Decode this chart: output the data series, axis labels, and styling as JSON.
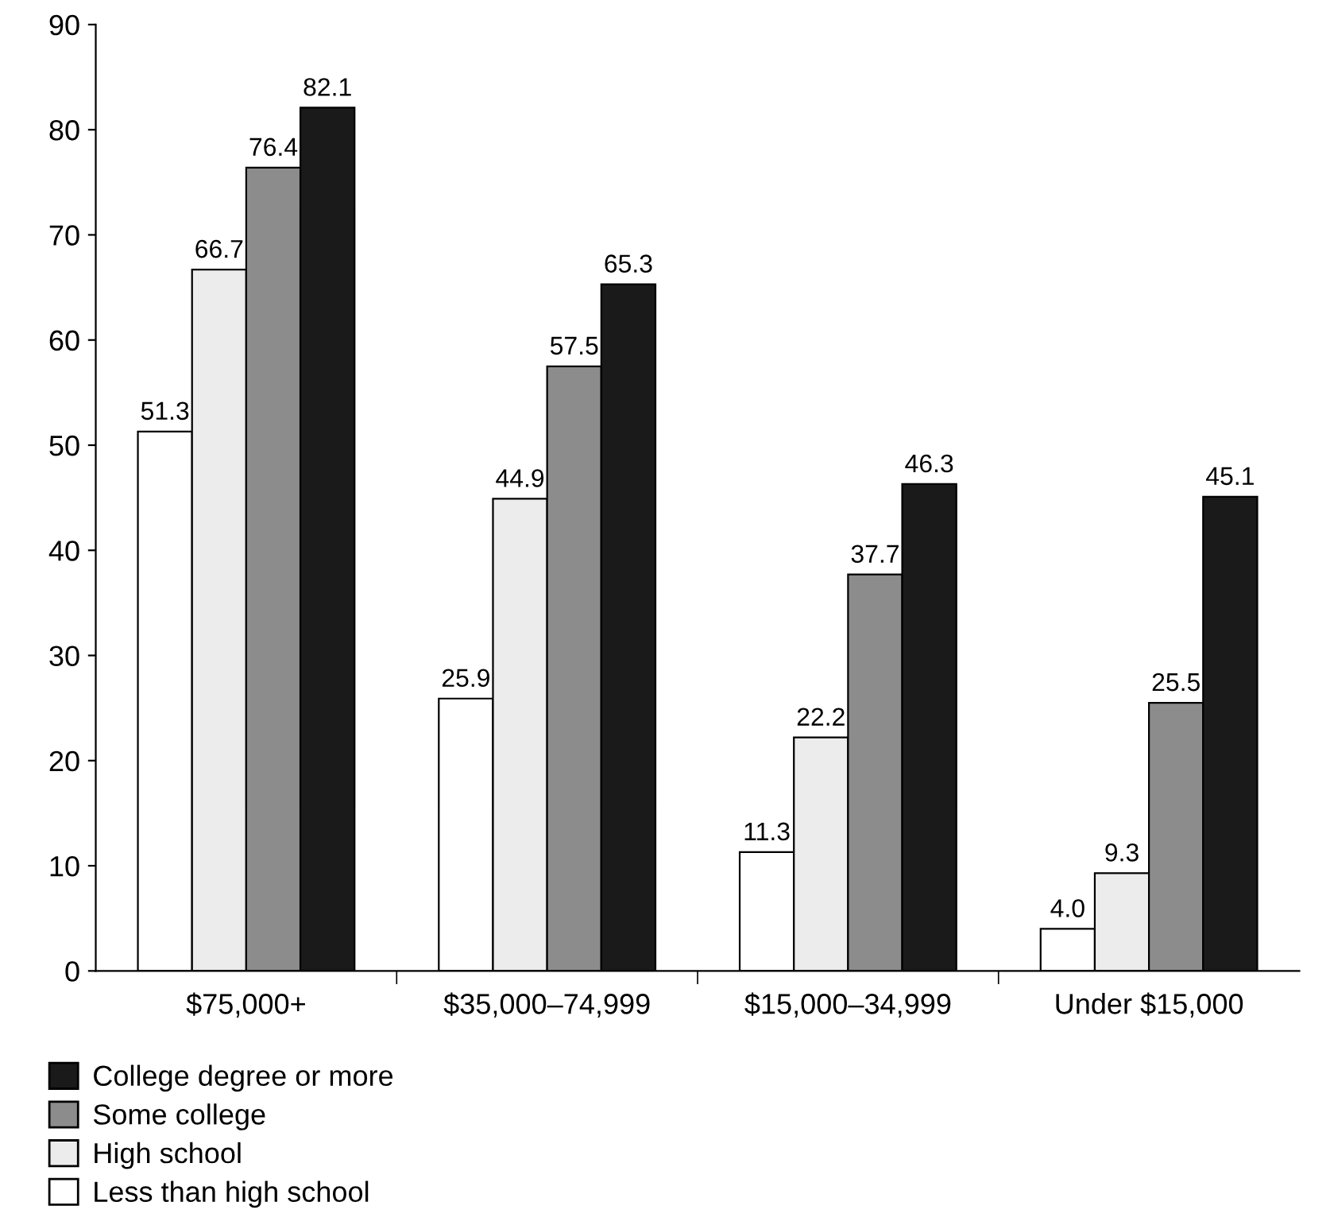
{
  "chart_data": {
    "type": "bar",
    "categories": [
      "$75,000+",
      "$35,000–74,999",
      "$15,000–34,999",
      "Under $15,000"
    ],
    "series": [
      {
        "name": "Less than high school",
        "color": "#ffffff",
        "values": [
          51.3,
          25.9,
          11.3,
          4.0
        ],
        "value_labels": [
          "51.3",
          "25.9",
          "11.3",
          "4.0"
        ]
      },
      {
        "name": "High school",
        "color": "#ececec",
        "values": [
          66.7,
          44.9,
          22.2,
          9.3
        ],
        "value_labels": [
          "66.7",
          "44.9",
          "22.2",
          "9.3"
        ]
      },
      {
        "name": "Some college",
        "color": "#8c8c8c",
        "values": [
          76.4,
          57.5,
          37.7,
          25.5
        ],
        "value_labels": [
          "76.4",
          "57.5",
          "37.7",
          "25.5"
        ]
      },
      {
        "name": "College degree or more",
        "color": "#1a1a1a",
        "values": [
          82.1,
          65.3,
          46.3,
          45.1
        ],
        "value_labels": [
          "82.1",
          "65.3",
          "46.3",
          "45.1"
        ]
      }
    ],
    "ylim": [
      0,
      90
    ],
    "yticks": [
      0,
      10,
      20,
      30,
      40,
      50,
      60,
      70,
      80,
      90
    ],
    "grid": false,
    "legend": "bottom left"
  }
}
